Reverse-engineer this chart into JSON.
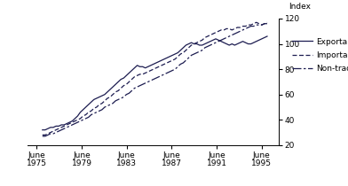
{
  "title": "Index",
  "ylim": [
    20,
    120
  ],
  "yticks": [
    20,
    40,
    60,
    80,
    100,
    120
  ],
  "xtick_years": [
    1975,
    1979,
    1983,
    1987,
    1991,
    1995
  ],
  "xtick_labels": [
    "June\n1975",
    "June\n1979",
    "June\n1983",
    "June\n1987",
    "June\n1991",
    "June\n1995"
  ],
  "line_color": "#1c1c50",
  "background_color": "#ffffff",
  "legend_entries": [
    "Exportable",
    "Importable",
    "Non-tradable"
  ],
  "exportable": [
    32,
    32,
    33,
    34,
    34,
    35,
    35,
    36,
    36,
    37,
    38,
    39,
    41,
    43,
    46,
    48,
    50,
    52,
    54,
    56,
    57,
    58,
    59,
    60,
    62,
    64,
    66,
    68,
    70,
    72,
    73,
    75,
    77,
    79,
    81,
    83,
    82,
    82,
    81,
    82,
    83,
    84,
    85,
    86,
    87,
    88,
    89,
    90,
    91,
    92,
    93,
    95,
    97,
    99,
    100,
    101,
    100,
    100,
    99,
    99,
    100,
    101,
    102,
    103,
    104,
    103,
    102,
    101,
    100,
    99,
    100,
    99,
    100,
    101,
    102,
    101,
    100,
    100,
    101,
    102,
    103,
    104,
    105,
    106
  ],
  "importable": [
    28,
    28,
    29,
    30,
    31,
    32,
    33,
    34,
    35,
    36,
    37,
    38,
    39,
    40,
    41,
    43,
    44,
    46,
    47,
    49,
    50,
    52,
    53,
    55,
    57,
    58,
    60,
    62,
    63,
    65,
    67,
    68,
    70,
    72,
    74,
    75,
    76,
    76,
    77,
    78,
    79,
    80,
    81,
    82,
    83,
    84,
    85,
    86,
    87,
    88,
    90,
    92,
    93,
    95,
    97,
    99,
    100,
    101,
    102,
    103,
    105,
    106,
    107,
    108,
    109,
    110,
    111,
    111,
    112,
    112,
    111,
    112,
    113,
    113,
    114,
    114,
    115,
    115,
    116,
    117,
    116,
    115,
    116,
    117
  ],
  "non_tradable": [
    27,
    27,
    28,
    29,
    29,
    30,
    31,
    32,
    33,
    34,
    35,
    36,
    37,
    38,
    39,
    40,
    41,
    42,
    44,
    45,
    46,
    47,
    48,
    50,
    51,
    52,
    53,
    55,
    56,
    57,
    58,
    60,
    61,
    63,
    65,
    66,
    67,
    68,
    69,
    70,
    71,
    72,
    73,
    74,
    75,
    76,
    77,
    78,
    79,
    80,
    82,
    84,
    85,
    87,
    89,
    91,
    92,
    93,
    94,
    95,
    97,
    98,
    99,
    100,
    101,
    102,
    103,
    104,
    105,
    106,
    107,
    108,
    109,
    110,
    111,
    112,
    113,
    114,
    114,
    115,
    115,
    115,
    116,
    116
  ],
  "xlim_left": 1974.2,
  "xlim_right": 1996.5
}
